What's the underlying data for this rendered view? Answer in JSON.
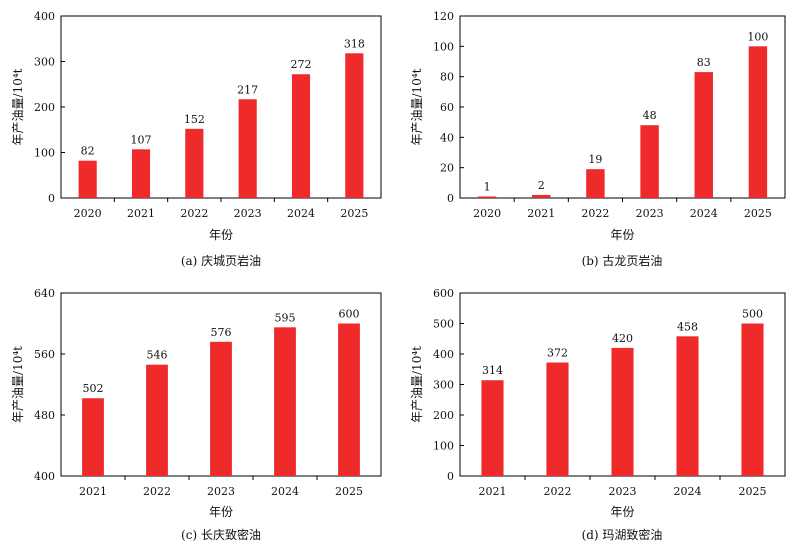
{
  "colors": {
    "bar": "#ee2a2a",
    "axis": "#000000",
    "text": "#111111"
  },
  "chart_data": [
    {
      "type": "bar",
      "caption": "(a) 庆城页岩油",
      "xlabel": "年份",
      "ylabel": "年产油量/10⁴t",
      "categories": [
        "2020",
        "2021",
        "2022",
        "2023",
        "2024",
        "2025"
      ],
      "values": [
        82,
        107,
        152,
        217,
        272,
        318
      ],
      "ylim": [
        0,
        400
      ],
      "yticks": [
        0,
        100,
        200,
        300,
        400
      ]
    },
    {
      "type": "bar",
      "caption": "(b) 古龙页岩油",
      "xlabel": "年份",
      "ylabel": "年产油量/10⁴t",
      "categories": [
        "2020",
        "2021",
        "2022",
        "2023",
        "2024",
        "2025"
      ],
      "values": [
        1,
        2,
        19,
        48,
        83,
        100
      ],
      "ylim": [
        0,
        120
      ],
      "yticks": [
        0,
        20,
        40,
        60,
        80,
        100,
        120
      ]
    },
    {
      "type": "bar",
      "caption": "(c) 长庆致密油",
      "xlabel": "年份",
      "ylabel": "年产油量/10⁴t",
      "categories": [
        "2021",
        "2022",
        "2023",
        "2024",
        "2025"
      ],
      "values": [
        502,
        546,
        576,
        595,
        600
      ],
      "ylim": [
        400,
        640
      ],
      "yticks": [
        400,
        480,
        560,
        640
      ]
    },
    {
      "type": "bar",
      "caption": "(d) 玛湖致密油",
      "xlabel": "年份",
      "ylabel": "年产油量/10⁴t",
      "categories": [
        "2021",
        "2022",
        "2023",
        "2024",
        "2025"
      ],
      "values": [
        314,
        372,
        420,
        458,
        500
      ],
      "ylim": [
        0,
        600
      ],
      "yticks": [
        0,
        100,
        200,
        300,
        400,
        500,
        600
      ]
    }
  ]
}
